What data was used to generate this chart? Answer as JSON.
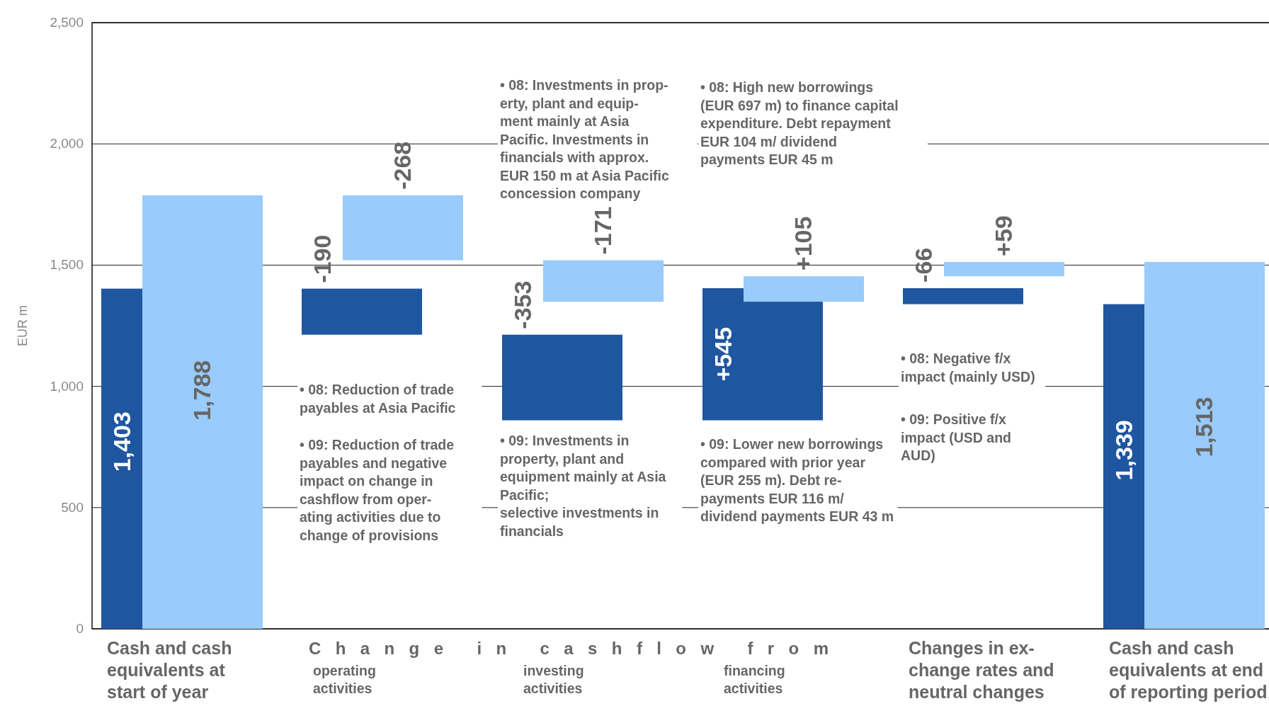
{
  "chart_data": {
    "type": "bar",
    "ylabel": "EUR m",
    "categories": [
      "Cash and cash\nequivalents at\nstart of year",
      "operating\nactivities",
      "investing\nactivities",
      "financing\nactivities",
      "Changes in ex-\nchange rates and\nneutral changes",
      "Cash and cash\nequivalents at end\nof reporting period"
    ],
    "series": [
      {
        "color": "#1f56a0",
        "values": [
          1403,
          -190,
          -353,
          545,
          -66,
          1339
        ],
        "base": [
          0,
          1403,
          1213,
          860,
          1405,
          0
        ],
        "value_labels": [
          "1,403",
          "-190",
          "-353",
          "+545",
          "-66",
          "1,339"
        ]
      },
      {
        "color": "#99cbfb",
        "values": [
          1788,
          -268,
          -171,
          105,
          59,
          1513
        ],
        "base": [
          0,
          1788,
          1520,
          1349,
          1454,
          0
        ],
        "value_labels": [
          "1,788",
          "-268",
          "-171",
          "+105",
          "+59",
          "1,513"
        ]
      }
    ],
    "ylim": [
      0,
      2500
    ],
    "yticks": [
      0,
      {
        "value": 500,
        "label": "500"
      },
      {
        "value": 1000,
        "label": "1,000"
      },
      {
        "value": 1500,
        "label": "1,500"
      },
      {
        "value": 2000,
        "label": "2,000"
      },
      {
        "value": 2500,
        "label": "2,500"
      }
    ],
    "grid": "y",
    "annotations": [
      "Change in cashflow from",
      "• 08: Reduction of trade\npayables at Asia Pacific",
      "• 09: Reduction of trade\npayables and negative\nimpact on change in\ncashflow from oper-\nating activities due to\nchange of provisions",
      "• 08: Investments in prop-\nerty, plant and equip-\nment mainly at Asia\nPacific. Investments in\nfinancials with approx.\nEUR 150 m at Asia Pacific\nconcession company",
      "• 09: Investments in\nproperty, plant and\nequipment mainly at Asia\nPacific;\nselective investments in\nfinancials",
      "• 08: High new borrowings\n(EUR 697 m) to finance capital\nexpenditure. Debt repayment\nEUR 104 m/ dividend\npayments EUR 45 m",
      "• 09: Lower new borrowings\ncompared with prior year\n(EUR 255 m). Debt re-\npayments EUR 116 m/\ndividend payments EUR 43 m",
      "• 08: Negative f/x\nimpact (mainly USD)",
      "• 09: Positive f/x\nimpact (USD and\nAUD)"
    ]
  }
}
